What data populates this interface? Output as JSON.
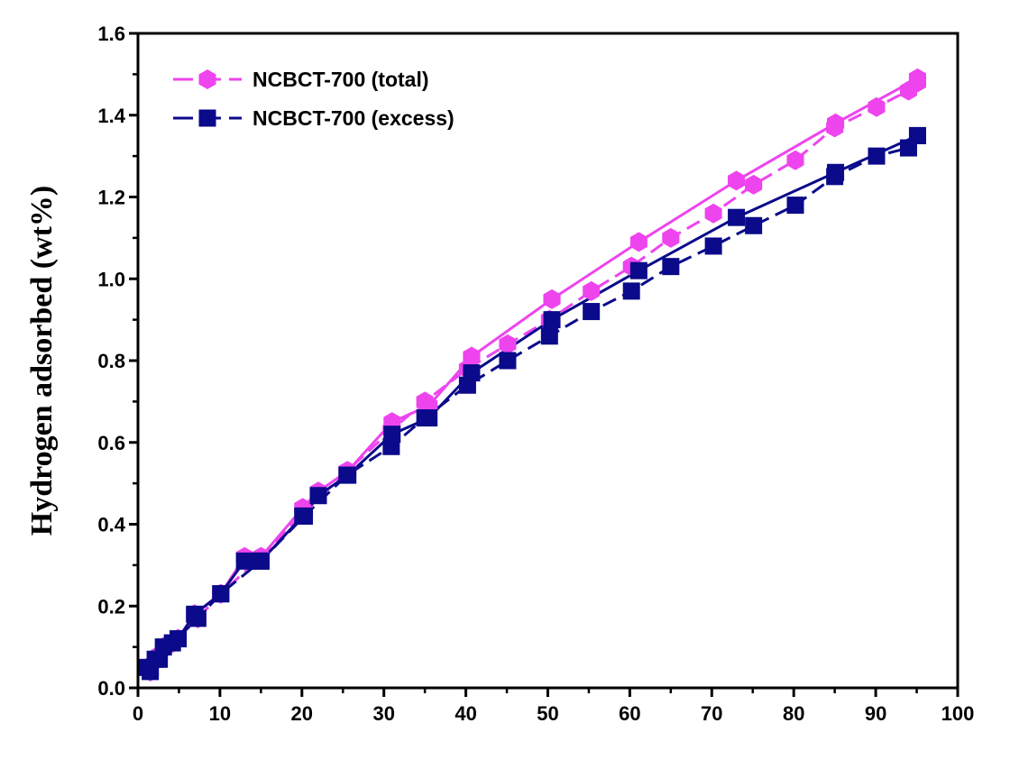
{
  "chart_data": {
    "type": "line",
    "title": "",
    "xlabel": "",
    "ylabel": "Hydrogen adsorbed (wt%)",
    "xlim": [
      0,
      100
    ],
    "ylim": [
      0,
      1.6
    ],
    "xticks": [
      "0",
      "10",
      "20",
      "30",
      "40",
      "50",
      "60",
      "70",
      "80",
      "90",
      "100"
    ],
    "yticks": [
      "0.0",
      "0.2",
      "0.4",
      "0.6",
      "0.8",
      "1.0",
      "1.2",
      "1.4",
      "1.6"
    ],
    "grid": false,
    "legend_position": "top-left",
    "series": [
      {
        "name": "NCBCT-700 (total)",
        "color": "#ee44ee",
        "marker": "hexagon",
        "adsorption": [
          [
            1.2,
            0.05
          ],
          [
            2.1,
            0.07
          ],
          [
            3.1,
            0.1
          ],
          [
            4.9,
            0.12
          ],
          [
            6.9,
            0.18
          ],
          [
            10.1,
            0.23
          ],
          [
            13.0,
            0.32
          ],
          [
            15.0,
            0.32
          ],
          [
            20.1,
            0.44
          ],
          [
            22.0,
            0.48
          ],
          [
            25.6,
            0.53
          ],
          [
            31.0,
            0.65
          ],
          [
            35.5,
            0.69
          ],
          [
            40.7,
            0.81
          ],
          [
            50.5,
            0.95
          ],
          [
            61.1,
            1.09
          ],
          [
            73.0,
            1.24
          ],
          [
            85.1,
            1.38
          ],
          [
            95.1,
            1.49
          ]
        ],
        "desorption": [
          [
            95.1,
            1.48
          ],
          [
            94.0,
            1.46
          ],
          [
            90.1,
            1.42
          ],
          [
            85.0,
            1.37
          ],
          [
            80.2,
            1.29
          ],
          [
            75.1,
            1.23
          ],
          [
            70.2,
            1.16
          ],
          [
            65.0,
            1.1
          ],
          [
            60.2,
            1.03
          ],
          [
            55.3,
            0.97
          ],
          [
            50.2,
            0.9
          ],
          [
            45.1,
            0.84
          ],
          [
            40.2,
            0.78
          ],
          [
            35.0,
            0.7
          ],
          [
            30.9,
            0.63
          ],
          [
            25.5,
            0.53
          ],
          [
            20.3,
            0.43
          ],
          [
            15.0,
            0.32
          ],
          [
            10.1,
            0.23
          ],
          [
            7.3,
            0.17
          ],
          [
            4.2,
            0.11
          ],
          [
            2.6,
            0.08
          ],
          [
            1.5,
            0.04
          ]
        ]
      },
      {
        "name": "NCBCT-700 (excess)",
        "color": "#0a0a8a",
        "marker": "square",
        "adsorption": [
          [
            1.2,
            0.05
          ],
          [
            2.1,
            0.07
          ],
          [
            3.1,
            0.1
          ],
          [
            4.9,
            0.12
          ],
          [
            6.9,
            0.18
          ],
          [
            10.1,
            0.23
          ],
          [
            13.0,
            0.31
          ],
          [
            15.0,
            0.31
          ],
          [
            20.1,
            0.42
          ],
          [
            22.0,
            0.47
          ],
          [
            25.6,
            0.52
          ],
          [
            31.0,
            0.62
          ],
          [
            35.5,
            0.66
          ],
          [
            40.7,
            0.77
          ],
          [
            50.5,
            0.9
          ],
          [
            61.1,
            1.02
          ],
          [
            73.0,
            1.15
          ],
          [
            85.1,
            1.26
          ],
          [
            95.1,
            1.35
          ]
        ],
        "desorption": [
          [
            95.1,
            1.35
          ],
          [
            94.0,
            1.32
          ],
          [
            90.1,
            1.3
          ],
          [
            85.0,
            1.25
          ],
          [
            80.2,
            1.18
          ],
          [
            75.1,
            1.13
          ],
          [
            70.2,
            1.08
          ],
          [
            65.0,
            1.03
          ],
          [
            60.2,
            0.97
          ],
          [
            55.3,
            0.92
          ],
          [
            50.2,
            0.86
          ],
          [
            45.1,
            0.8
          ],
          [
            40.2,
            0.74
          ],
          [
            35.0,
            0.66
          ],
          [
            30.9,
            0.59
          ],
          [
            25.5,
            0.52
          ],
          [
            20.3,
            0.42
          ],
          [
            15.0,
            0.31
          ],
          [
            10.1,
            0.23
          ],
          [
            7.3,
            0.17
          ],
          [
            4.2,
            0.11
          ],
          [
            2.6,
            0.07
          ],
          [
            1.5,
            0.04
          ]
        ]
      }
    ]
  }
}
